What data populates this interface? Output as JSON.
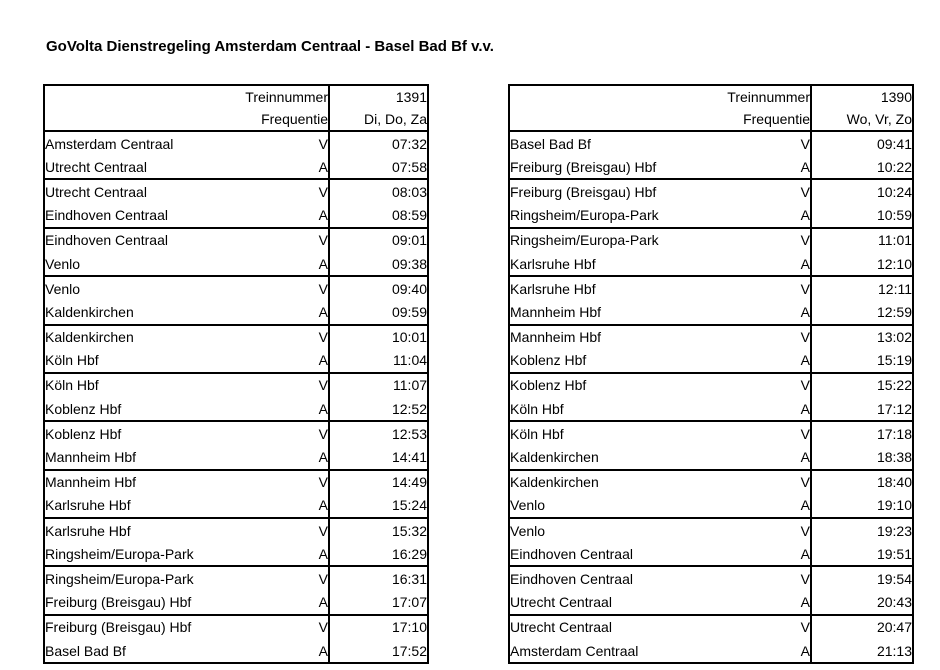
{
  "page": {
    "title": "GoVolta Dienstregeling Amsterdam Centraal - Basel Bad Bf v.v."
  },
  "labels": {
    "train_number": "Treinnummer",
    "frequency": "Frequentie"
  },
  "tables": [
    {
      "train_number": "1391",
      "frequency": "Di, Do, Za",
      "rows": [
        {
          "station": "Amsterdam Centraal",
          "type": "V",
          "time": "07:32"
        },
        {
          "station": "Utrecht Centraal",
          "type": "A",
          "time": "07:58"
        },
        {
          "station": "Utrecht Centraal",
          "type": "V",
          "time": "08:03"
        },
        {
          "station": "Eindhoven Centraal",
          "type": "A",
          "time": "08:59"
        },
        {
          "station": "Eindhoven Centraal",
          "type": "V",
          "time": "09:01"
        },
        {
          "station": "Venlo",
          "type": "A",
          "time": "09:38"
        },
        {
          "station": "Venlo",
          "type": "V",
          "time": "09:40"
        },
        {
          "station": "Kaldenkirchen",
          "type": "A",
          "time": "09:59"
        },
        {
          "station": "Kaldenkirchen",
          "type": "V",
          "time": "10:01"
        },
        {
          "station": "Köln Hbf",
          "type": "A",
          "time": "11:04"
        },
        {
          "station": "Köln Hbf",
          "type": "V",
          "time": "11:07"
        },
        {
          "station": "Koblenz Hbf",
          "type": "A",
          "time": "12:52"
        },
        {
          "station": "Koblenz Hbf",
          "type": "V",
          "time": "12:53"
        },
        {
          "station": "Mannheim Hbf",
          "type": "A",
          "time": "14:41"
        },
        {
          "station": "Mannheim Hbf",
          "type": "V",
          "time": "14:49"
        },
        {
          "station": "Karlsruhe Hbf",
          "type": "A",
          "time": "15:24"
        },
        {
          "station": "Karlsruhe Hbf",
          "type": "V",
          "time": "15:32"
        },
        {
          "station": "Ringsheim/Europa-Park",
          "type": "A",
          "time": "16:29"
        },
        {
          "station": "Ringsheim/Europa-Park",
          "type": "V",
          "time": "16:31"
        },
        {
          "station": "Freiburg (Breisgau) Hbf",
          "type": "A",
          "time": "17:07"
        },
        {
          "station": "Freiburg (Breisgau) Hbf",
          "type": "V",
          "time": "17:10"
        },
        {
          "station": "Basel Bad Bf",
          "type": "A",
          "time": "17:52"
        }
      ]
    },
    {
      "train_number": "1390",
      "frequency": "Wo, Vr, Zo",
      "rows": [
        {
          "station": "Basel Bad Bf",
          "type": "V",
          "time": "09:41"
        },
        {
          "station": "Freiburg (Breisgau) Hbf",
          "type": "A",
          "time": "10:22"
        },
        {
          "station": "Freiburg (Breisgau) Hbf",
          "type": "V",
          "time": "10:24"
        },
        {
          "station": "Ringsheim/Europa-Park",
          "type": "A",
          "time": "10:59"
        },
        {
          "station": "Ringsheim/Europa-Park",
          "type": "V",
          "time": "11:01"
        },
        {
          "station": "Karlsruhe Hbf",
          "type": "A",
          "time": "12:10"
        },
        {
          "station": "Karlsruhe Hbf",
          "type": "V",
          "time": "12:11"
        },
        {
          "station": "Mannheim Hbf",
          "type": "A",
          "time": "12:59"
        },
        {
          "station": "Mannheim Hbf",
          "type": "V",
          "time": "13:02"
        },
        {
          "station": "Koblenz Hbf",
          "type": "A",
          "time": "15:19"
        },
        {
          "station": "Koblenz Hbf",
          "type": "V",
          "time": "15:22"
        },
        {
          "station": "Köln Hbf",
          "type": "A",
          "time": "17:12"
        },
        {
          "station": "Köln Hbf",
          "type": "V",
          "time": "17:18"
        },
        {
          "station": "Kaldenkirchen",
          "type": "A",
          "time": "18:38"
        },
        {
          "station": "Kaldenkirchen",
          "type": "V",
          "time": "18:40"
        },
        {
          "station": "Venlo",
          "type": "A",
          "time": "19:10"
        },
        {
          "station": "Venlo",
          "type": "V",
          "time": "19:23"
        },
        {
          "station": "Eindhoven Centraal",
          "type": "A",
          "time": "19:51"
        },
        {
          "station": "Eindhoven Centraal",
          "type": "V",
          "time": "19:54"
        },
        {
          "station": "Utrecht Centraal",
          "type": "A",
          "time": "20:43"
        },
        {
          "station": "Utrecht Centraal",
          "type": "V",
          "time": "20:47"
        },
        {
          "station": "Amsterdam Centraal",
          "type": "A",
          "time": "21:13"
        }
      ]
    }
  ]
}
